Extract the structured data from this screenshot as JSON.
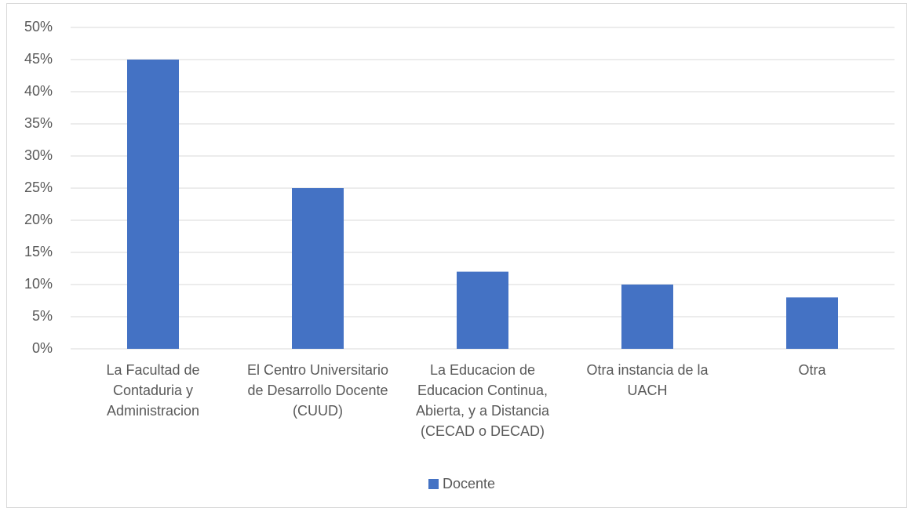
{
  "chart_data": {
    "type": "bar",
    "categories": [
      "La Facultad de Contaduria y Administracion",
      "El Centro Universitario de Desarrollo Docente (CUUD)",
      "La Educacion de Educacion Continua, Abierta, y a Distancia (CECAD o DECAD)",
      "Otra instancia de la UACH",
      "Otra"
    ],
    "series": [
      {
        "name": "Docente",
        "color": "#4472c4",
        "values": [
          45,
          25,
          12,
          10,
          8
        ]
      }
    ],
    "ylim": [
      0,
      50
    ],
    "yticks": [
      {
        "value": 0,
        "label": "0%"
      },
      {
        "value": 5,
        "label": "5%"
      },
      {
        "value": 10,
        "label": "10%"
      },
      {
        "value": 15,
        "label": "15%"
      },
      {
        "value": 20,
        "label": "20%"
      },
      {
        "value": 25,
        "label": "25%"
      },
      {
        "value": 30,
        "label": "30%"
      },
      {
        "value": 35,
        "label": "35%"
      },
      {
        "value": 40,
        "label": "40%"
      },
      {
        "value": 45,
        "label": "45%"
      },
      {
        "value": 50,
        "label": "50%"
      }
    ],
    "grid": true,
    "legend": "bottom"
  }
}
